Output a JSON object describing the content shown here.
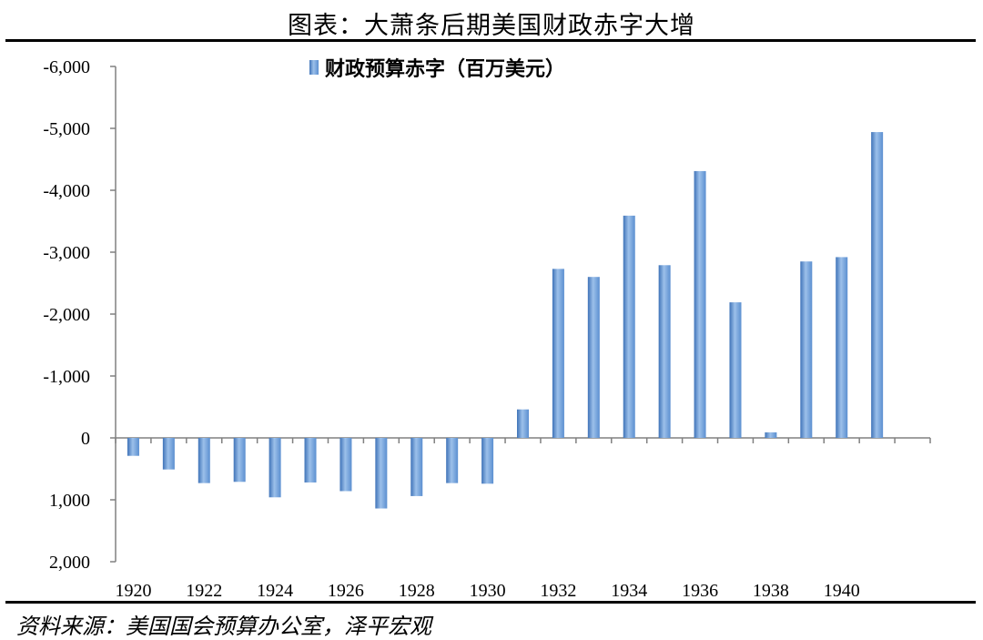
{
  "title": "图表：大萧条后期美国财政赤字大增",
  "source": "资料来源：美国国会预算办公室，泽平宏观",
  "colors": {
    "bar": "#5b8fd0",
    "bar_light": "#9cc0ea",
    "bar_dark": "#3f73b8",
    "axis": "#808080"
  },
  "chart_data": {
    "type": "bar",
    "title": "",
    "xlabel": "",
    "ylabel": "",
    "legend": {
      "position": "top-center",
      "label": "财政预算赤字（百万美元）"
    },
    "categories": [
      1920,
      1921,
      1922,
      1923,
      1924,
      1925,
      1926,
      1927,
      1928,
      1929,
      1930,
      1931,
      1932,
      1933,
      1934,
      1935,
      1936,
      1937,
      1938,
      1939,
      1940,
      1941,
      1942
    ],
    "series": [
      {
        "name": "财政预算赤字（百万美元）",
        "values": [
          290,
          510,
          730,
          710,
          960,
          720,
          860,
          1140,
          940,
          730,
          740,
          -460,
          -2730,
          -2600,
          -3590,
          -2790,
          -4310,
          -2190,
          -90,
          -2850,
          -2920,
          -4940,
          null
        ]
      }
    ],
    "x_tick_labels": [
      "1920",
      "1922",
      "1924",
      "1926",
      "1928",
      "1930",
      "1932",
      "1934",
      "1936",
      "1938",
      "1940"
    ],
    "y_tick_values": [
      -6000,
      -5000,
      -4000,
      -3000,
      -2000,
      -1000,
      0,
      1000,
      2000
    ],
    "y_tick_labels": [
      "-6,000",
      "-5,000",
      "-4,000",
      "-3,000",
      "-2,000",
      "-1,000",
      "0",
      "1,000",
      "2,000"
    ],
    "ylim": [
      -6000,
      2000
    ],
    "y_axis_inverted": true,
    "grid": false
  }
}
